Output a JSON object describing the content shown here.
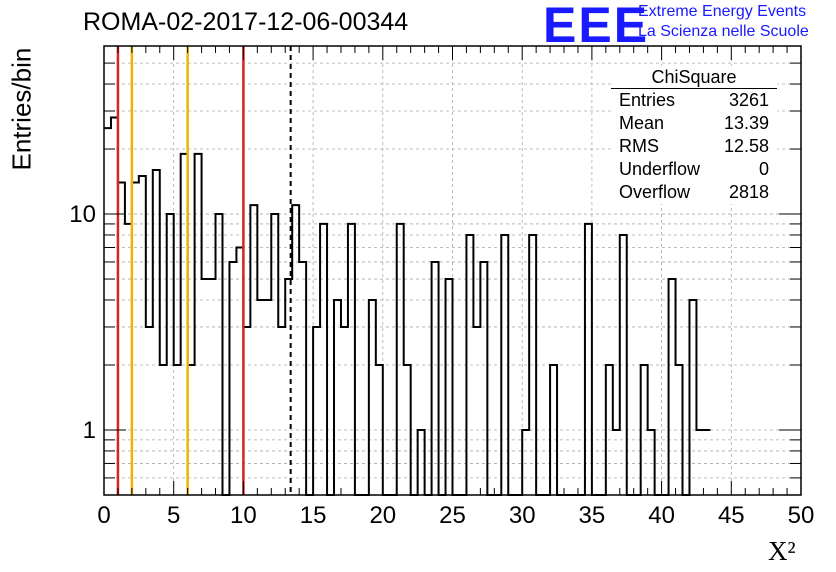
{
  "title": "ROMA-02-2017-12-06-00344",
  "logo": {
    "mark": "EEE",
    "line1": "Extreme Energy Events",
    "line2": "La Scienza nelle Scuole"
  },
  "colors": {
    "red_lines": "#dd2222",
    "orange_lines": "#f0b400",
    "logo": "#1a1aff"
  },
  "stats": {
    "header": "ChiSquare",
    "rows": [
      {
        "label": "Entries",
        "value": "3261"
      },
      {
        "label": "Mean",
        "value": "13.39"
      },
      {
        "label": "RMS",
        "value": "12.58"
      },
      {
        "label": "Underflow",
        "value": "0"
      },
      {
        "label": "Overflow",
        "value": "2818"
      }
    ]
  },
  "chart_data": {
    "type": "histogram",
    "xlabel": "X²",
    "ylabel": "Entries/bin",
    "xlim": [
      0,
      50
    ],
    "ylim": [
      0.5,
      60
    ],
    "yscale": "log",
    "grid": true,
    "bin_width": 0.5,
    "x_ticks": [
      "0",
      "5",
      "10",
      "15",
      "20",
      "25",
      "30",
      "35",
      "40",
      "45",
      "50"
    ],
    "y_ticks": [
      "1",
      "10"
    ],
    "values": [
      25,
      28,
      14,
      9,
      14,
      15,
      3,
      16,
      2,
      10,
      2,
      19,
      2,
      19,
      5,
      5,
      10,
      0,
      6,
      7,
      3,
      11,
      4,
      4,
      10,
      3,
      5,
      11,
      6,
      0,
      3,
      9,
      0,
      4,
      3,
      9,
      0,
      0,
      4,
      2,
      0,
      0,
      9,
      2,
      0,
      1,
      0,
      6,
      0,
      5,
      0,
      0,
      8,
      3,
      6,
      0,
      0,
      8,
      0,
      0,
      1,
      8,
      0,
      0,
      2,
      0,
      0,
      0,
      0,
      9,
      0,
      0,
      2,
      1,
      8,
      0,
      0,
      2,
      1,
      0,
      0,
      5,
      2,
      0,
      4,
      1,
      1
    ],
    "red_lines": [
      1,
      10
    ],
    "orange_lines": [
      2,
      6
    ],
    "mean_line": 13.39
  }
}
